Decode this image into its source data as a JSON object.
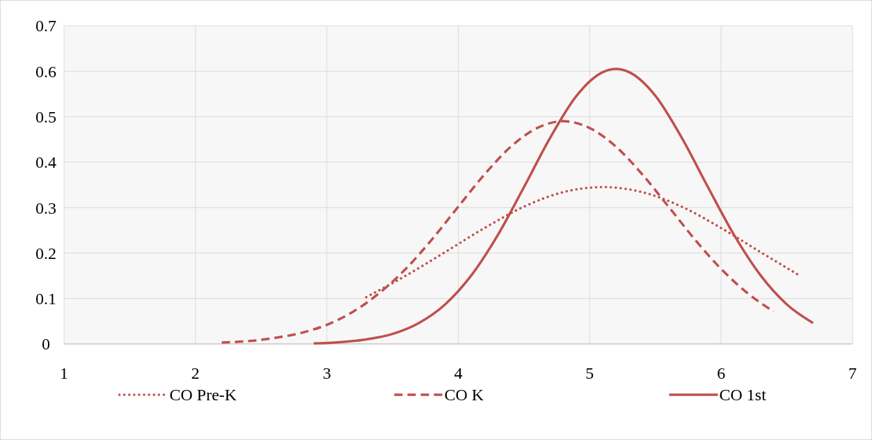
{
  "chart_data": {
    "type": "line",
    "xlim": [
      1,
      7
    ],
    "xticks": [
      1,
      2,
      3,
      4,
      5,
      6,
      7
    ],
    "ylim": [
      0,
      0.7
    ],
    "yticks": [
      0,
      0.1,
      0.2,
      0.3,
      0.4,
      0.5,
      0.6,
      0.7
    ],
    "grid": true,
    "legend": "bottom",
    "marker": "none",
    "series": [
      {
        "name": "CO Pre-K",
        "color": "#c0504d",
        "line_style": "dotted",
        "x": [
          3.3,
          3.6,
          3.9,
          4.2,
          4.5,
          4.8,
          5.1,
          5.4,
          5.7,
          6.0,
          6.3,
          6.6
        ],
        "values": [
          0.103,
          0.15,
          0.202,
          0.255,
          0.302,
          0.334,
          0.345,
          0.334,
          0.302,
          0.255,
          0.202,
          0.15
        ]
      },
      {
        "name": "CO K",
        "color": "#c0504d",
        "line_style": "dashed",
        "x": [
          2.2,
          2.4,
          2.6,
          2.8,
          3.0,
          3.2,
          3.4,
          3.6,
          3.8,
          4.0,
          4.2,
          4.4,
          4.6,
          4.8,
          5.0,
          5.2,
          5.4,
          5.6,
          5.8,
          6.0,
          6.2,
          6.4
        ],
        "values": [
          0.003,
          0.006,
          0.013,
          0.024,
          0.042,
          0.071,
          0.112,
          0.165,
          0.23,
          0.302,
          0.373,
          0.434,
          0.475,
          0.49,
          0.475,
          0.434,
          0.373,
          0.302,
          0.23,
          0.165,
          0.112,
          0.071
        ]
      },
      {
        "name": "CO 1st",
        "color": "#c0504d",
        "line_style": "solid",
        "x": [
          2.9,
          3.1,
          3.3,
          3.5,
          3.7,
          3.9,
          4.1,
          4.3,
          4.5,
          4.7,
          4.9,
          5.1,
          5.2,
          5.3,
          5.5,
          5.7,
          5.9,
          6.1,
          6.3,
          6.5,
          6.7
        ],
        "values": [
          0.001,
          0.004,
          0.01,
          0.022,
          0.046,
          0.087,
          0.151,
          0.239,
          0.345,
          0.454,
          0.546,
          0.598,
          0.605,
          0.598,
          0.546,
          0.454,
          0.345,
          0.239,
          0.151,
          0.087,
          0.046
        ]
      }
    ]
  }
}
